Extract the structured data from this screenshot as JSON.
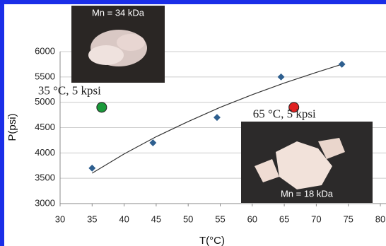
{
  "chart_data": {
    "type": "scatter",
    "xlabel": "T(°C)",
    "ylabel": "P(psi)",
    "xlim": [
      30,
      80
    ],
    "xticks": [
      30,
      35,
      40,
      45,
      50,
      55,
      60,
      65,
      70,
      75,
      80
    ],
    "ylim": [
      3000,
      6000
    ],
    "yticks": [
      3000,
      3500,
      4000,
      4500,
      5000,
      5500,
      6000
    ],
    "grid": true,
    "points": {
      "color": "#2e5f8f",
      "x": [
        35,
        44.5,
        54.5,
        64.5,
        74
      ],
      "values": [
        3700,
        4200,
        4700,
        5500,
        5750
      ]
    },
    "trendline": {
      "color": "#333333",
      "x": [
        35,
        40,
        45,
        50,
        55,
        60,
        65,
        70,
        74
      ],
      "values": [
        3600,
        3980,
        4320,
        4620,
        4900,
        5150,
        5380,
        5590,
        5750
      ]
    },
    "annotations": [
      {
        "text": "35 °C, 5 kpsi",
        "x": 36.5,
        "y": 4900,
        "color": "#1a9a3a"
      },
      {
        "text": "65 °C, 5 kpsi",
        "x": 66.5,
        "y": 4900,
        "color": "#e02020"
      }
    ],
    "photos": [
      {
        "label": "Mn = 34 kDa"
      },
      {
        "label": "Mn = 18 kDa"
      }
    ]
  }
}
